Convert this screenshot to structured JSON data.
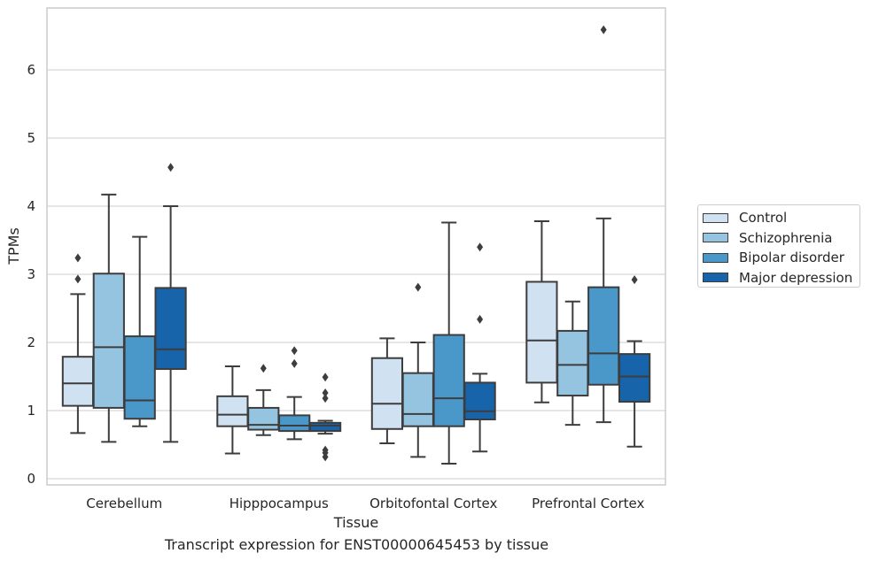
{
  "chart_data": {
    "type": "box",
    "xlabel": "Tissue",
    "ylabel": "TPMs",
    "caption": "Transcript expression for ENST00000645453 by tissue",
    "ylim": [
      -0.1,
      6.9
    ],
    "yticks": [
      0,
      1,
      2,
      3,
      4,
      5,
      6
    ],
    "grid": true,
    "legend_position": "right",
    "categories": [
      "Cerebellum",
      "Hipppocampus",
      "Orbitofontal Cortex",
      "Prefrontal Cortex"
    ],
    "series": [
      {
        "name": "Control",
        "color": "#d0e1f2",
        "boxes": [
          {
            "whislo": 0.67,
            "q1": 1.07,
            "med": 1.4,
            "q3": 1.79,
            "whishi": 2.71,
            "fliers": [
              2.93,
              3.24
            ]
          },
          {
            "whislo": 0.37,
            "q1": 0.77,
            "med": 0.94,
            "q3": 1.21,
            "whishi": 1.65,
            "fliers": []
          },
          {
            "whislo": 0.52,
            "q1": 0.73,
            "med": 1.1,
            "q3": 1.77,
            "whishi": 2.06,
            "fliers": []
          },
          {
            "whislo": 1.12,
            "q1": 1.41,
            "med": 2.03,
            "q3": 2.89,
            "whishi": 3.78,
            "fliers": []
          }
        ]
      },
      {
        "name": "Schizophrenia",
        "color": "#94c4df",
        "boxes": [
          {
            "whislo": 0.54,
            "q1": 1.04,
            "med": 1.93,
            "q3": 3.01,
            "whishi": 4.17,
            "fliers": []
          },
          {
            "whislo": 0.64,
            "q1": 0.72,
            "med": 0.79,
            "q3": 1.04,
            "whishi": 1.3,
            "fliers": [
              1.62
            ]
          },
          {
            "whislo": 0.32,
            "q1": 0.77,
            "med": 0.95,
            "q3": 1.55,
            "whishi": 2.0,
            "fliers": [
              2.81
            ]
          },
          {
            "whislo": 0.79,
            "q1": 1.22,
            "med": 1.67,
            "q3": 2.17,
            "whishi": 2.6,
            "fliers": []
          }
        ]
      },
      {
        "name": "Bipolar disorder",
        "color": "#4a98c9",
        "boxes": [
          {
            "whislo": 0.77,
            "q1": 0.88,
            "med": 1.15,
            "q3": 2.09,
            "whishi": 3.55,
            "fliers": []
          },
          {
            "whislo": 0.58,
            "q1": 0.7,
            "med": 0.78,
            "q3": 0.93,
            "whishi": 1.2,
            "fliers": [
              1.69,
              1.88
            ]
          },
          {
            "whislo": 0.22,
            "q1": 0.77,
            "med": 1.18,
            "q3": 2.11,
            "whishi": 3.76,
            "fliers": []
          },
          {
            "whislo": 0.83,
            "q1": 1.38,
            "med": 1.84,
            "q3": 2.81,
            "whishi": 3.82,
            "fliers": [
              6.59
            ]
          }
        ]
      },
      {
        "name": "Major depression",
        "color": "#1764ab",
        "boxes": [
          {
            "whislo": 0.54,
            "q1": 1.61,
            "med": 1.9,
            "q3": 2.8,
            "whishi": 4.0,
            "fliers": [
              4.57
            ]
          },
          {
            "whislo": 0.66,
            "q1": 0.7,
            "med": 0.78,
            "q3": 0.82,
            "whishi": 0.85,
            "fliers": [
              0.32,
              0.38,
              0.42,
              1.18,
              1.26,
              1.49
            ]
          },
          {
            "whislo": 0.4,
            "q1": 0.87,
            "med": 0.99,
            "q3": 1.41,
            "whishi": 1.54,
            "fliers": [
              2.34,
              3.4
            ]
          },
          {
            "whislo": 0.47,
            "q1": 1.13,
            "med": 1.5,
            "q3": 1.83,
            "whishi": 2.02,
            "fliers": [
              2.92
            ]
          }
        ]
      }
    ]
  }
}
